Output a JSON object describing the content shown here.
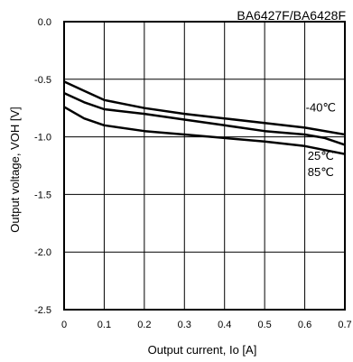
{
  "chart_data": {
    "type": "line",
    "title": "BA6427F/BA6428F",
    "xlabel": "Output current, Io [A]",
    "ylabel": "Output voltage, VOH [V]",
    "xlim": [
      0,
      0.7
    ],
    "ylim": [
      -2.5,
      0.0
    ],
    "x_ticks": [
      "0",
      "0.1",
      "0.2",
      "0.3",
      "0.4",
      "0.5",
      "0.6",
      "0.7"
    ],
    "y_ticks": [
      "0.0",
      "-0.5",
      "-1.0",
      "-1.5",
      "-2.0",
      "-2.5"
    ],
    "grid": true,
    "series": [
      {
        "name": "-40℃",
        "x": [
          0,
          0.05,
          0.1,
          0.2,
          0.3,
          0.4,
          0.5,
          0.6,
          0.7
        ],
        "y": [
          -0.52,
          -0.6,
          -0.68,
          -0.75,
          -0.8,
          -0.84,
          -0.88,
          -0.92,
          -0.98
        ]
      },
      {
        "name": "25℃",
        "x": [
          0,
          0.05,
          0.1,
          0.2,
          0.3,
          0.4,
          0.5,
          0.6,
          0.65,
          0.7
        ],
        "y": [
          -0.62,
          -0.7,
          -0.76,
          -0.8,
          -0.85,
          -0.9,
          -0.95,
          -0.98,
          -1.01,
          -1.07
        ]
      },
      {
        "name": "85℃",
        "x": [
          0,
          0.05,
          0.1,
          0.2,
          0.3,
          0.4,
          0.5,
          0.6,
          0.7
        ],
        "y": [
          -0.74,
          -0.84,
          -0.9,
          -0.95,
          -0.98,
          -1.01,
          -1.04,
          -1.08,
          -1.15
        ]
      }
    ]
  }
}
